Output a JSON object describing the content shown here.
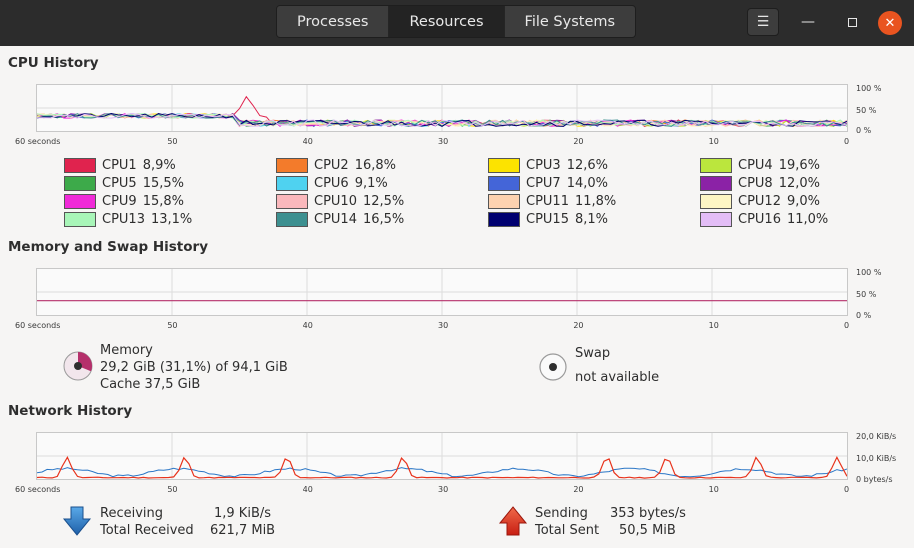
{
  "tabs": [
    {
      "label": "Processes",
      "active": false
    },
    {
      "label": "Resources",
      "active": true
    },
    {
      "label": "File Systems",
      "active": false
    }
  ],
  "window": {
    "menu_icon": "hamburger-menu-icon",
    "minimize_icon": "minimize-icon",
    "maximize_icon": "maximize-icon",
    "close_icon": "close-icon",
    "close_color": "#e95420"
  },
  "cpu": {
    "title": "CPU History",
    "x_ticks": [
      "60 seconds",
      "50",
      "40",
      "30",
      "20",
      "10",
      "0"
    ],
    "y_ticks": [
      "100 %",
      "50 %",
      "0 %"
    ],
    "cores": [
      {
        "name": "CPU1",
        "value": "8,9%",
        "color": "#e0234e"
      },
      {
        "name": "CPU2",
        "value": "16,8%",
        "color": "#f37b2b"
      },
      {
        "name": "CPU3",
        "value": "12,6%",
        "color": "#fce300"
      },
      {
        "name": "CPU4",
        "value": "19,6%",
        "color": "#bbe63d"
      },
      {
        "name": "CPU5",
        "value": "15,5%",
        "color": "#3daa4a"
      },
      {
        "name": "CPU6",
        "value": "9,1%",
        "color": "#4fd2f0"
      },
      {
        "name": "CPU7",
        "value": "14,0%",
        "color": "#4465d8"
      },
      {
        "name": "CPU8",
        "value": "12,0%",
        "color": "#8b22a6"
      },
      {
        "name": "CPU9",
        "value": "15,8%",
        "color": "#f02ad8"
      },
      {
        "name": "CPU10",
        "value": "12,5%",
        "color": "#fab8bc"
      },
      {
        "name": "CPU11",
        "value": "11,8%",
        "color": "#fdd2b0"
      },
      {
        "name": "CPU12",
        "value": "9,0%",
        "color": "#fdf6c4"
      },
      {
        "name": "CPU13",
        "value": "13,1%",
        "color": "#a8f5b8"
      },
      {
        "name": "CPU14",
        "value": "16,5%",
        "color": "#3d9090"
      },
      {
        "name": "CPU15",
        "value": "8,1%",
        "color": "#000070"
      },
      {
        "name": "CPU16",
        "value": "11,0%",
        "color": "#e3bdf6"
      }
    ]
  },
  "memory": {
    "title": "Memory and Swap History",
    "x_ticks": [
      "60 seconds",
      "50",
      "40",
      "30",
      "20",
      "10",
      "0"
    ],
    "y_ticks": [
      "100 %",
      "50 %",
      "0 %"
    ],
    "memory_label": "Memory",
    "memory_usage": "29,2 GiB (31,1%) of 94,1 GiB",
    "cache": "Cache 37,5 GiB",
    "memory_percent": 31.1,
    "memory_color": "#b5306b",
    "swap_label": "Swap",
    "swap_status": "not available"
  },
  "network": {
    "title": "Network History",
    "x_ticks": [
      "60 seconds",
      "50",
      "40",
      "30",
      "20",
      "10",
      "0"
    ],
    "y_ticks": [
      "20,0 KiB/s",
      "10,0 KiB/s",
      "0 bytes/s"
    ],
    "receiving_label": "Receiving",
    "receiving_value": "1,9 KiB/s",
    "total_received_label": "Total Received",
    "total_received_value": "621,7 MiB",
    "sending_label": "Sending",
    "sending_value": "353 bytes/s",
    "total_sent_label": "Total Sent",
    "total_sent_value": "50,5 MiB",
    "receive_color": "#2a76c6",
    "send_color": "#e8331c"
  }
}
